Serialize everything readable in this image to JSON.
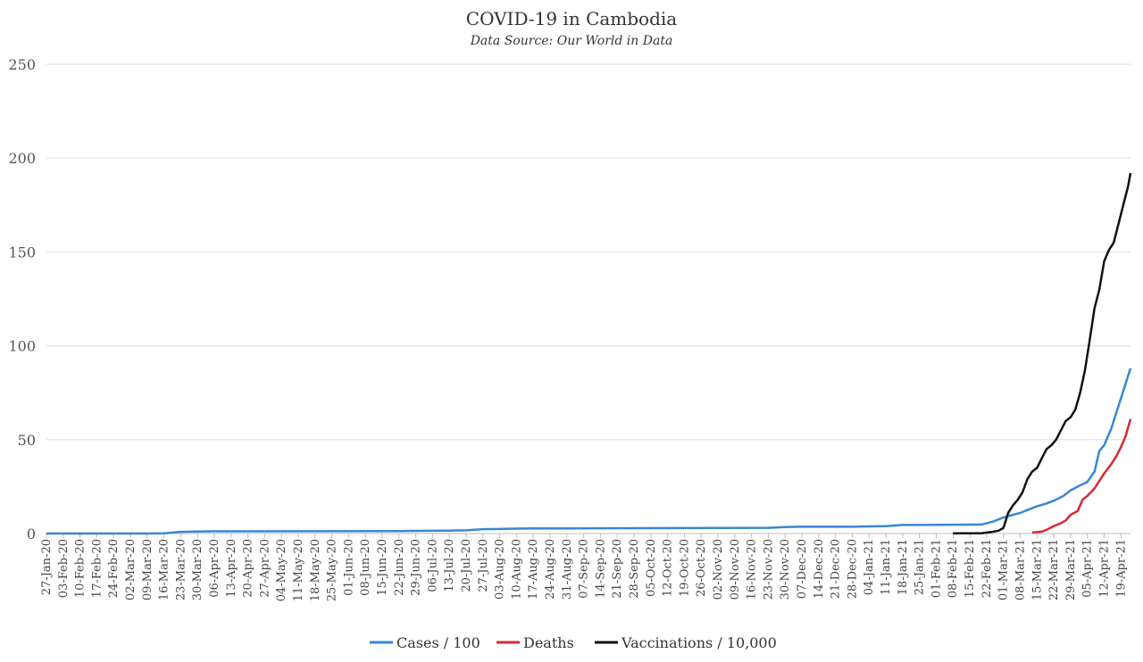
{
  "chart_data": {
    "type": "line",
    "title": "COVID-19 in Cambodia",
    "subtitle": "Data Source: Our World in Data",
    "xlabel": "",
    "ylabel": "",
    "ylim": [
      0,
      250
    ],
    "yticks": [
      0,
      50,
      100,
      150,
      200,
      250
    ],
    "grid": "horizontal",
    "legend_position": "bottom",
    "x_start": "27-Jan-20",
    "x_end": "23-Apr-21",
    "x_tick_labels": [
      "27-Jan-20",
      "03-Feb-20",
      "10-Feb-20",
      "17-Feb-20",
      "24-Feb-20",
      "02-Mar-20",
      "09-Mar-20",
      "16-Mar-20",
      "23-Mar-20",
      "30-Mar-20",
      "06-Apr-20",
      "13-Apr-20",
      "20-Apr-20",
      "27-Apr-20",
      "04-May-20",
      "11-May-20",
      "18-May-20",
      "25-May-20",
      "01-Jun-20",
      "08-Jun-20",
      "15-Jun-20",
      "22-Jun-20",
      "29-Jun-20",
      "06-Jul-20",
      "13-Jul-20",
      "20-Jul-20",
      "27-Jul-20",
      "03-Aug-20",
      "10-Aug-20",
      "17-Aug-20",
      "24-Aug-20",
      "31-Aug-20",
      "07-Sep-20",
      "14-Sep-20",
      "21-Sep-20",
      "28-Sep-20",
      "05-Oct-20",
      "12-Oct-20",
      "19-Oct-20",
      "26-Oct-20",
      "02-Nov-20",
      "09-Nov-20",
      "16-Nov-20",
      "23-Nov-20",
      "30-Nov-20",
      "07-Dec-20",
      "14-Dec-20",
      "21-Dec-20",
      "28-Dec-20",
      "04-Jan-21",
      "11-Jan-21",
      "18-Jan-21",
      "25-Jan-21",
      "01-Feb-21",
      "08-Feb-21",
      "15-Feb-21",
      "22-Feb-21",
      "01-Mar-21",
      "08-Mar-21",
      "15-Mar-21",
      "22-Mar-21",
      "29-Mar-21",
      "05-Apr-21",
      "12-Apr-21",
      "19-Apr-21"
    ],
    "series": [
      {
        "name": "Cases / 100",
        "color": "#3a86d4",
        "points": [
          [
            "27-Jan-20",
            0.01
          ],
          [
            "09-Mar-20",
            0.02
          ],
          [
            "16-Mar-20",
            0.1
          ],
          [
            "23-Mar-20",
            0.9
          ],
          [
            "30-Mar-20",
            1.07
          ],
          [
            "06-Apr-20",
            1.2
          ],
          [
            "22-Jun-20",
            1.3
          ],
          [
            "29-Jun-20",
            1.41
          ],
          [
            "13-Jul-20",
            1.56
          ],
          [
            "20-Jul-20",
            1.71
          ],
          [
            "27-Jul-20",
            2.34
          ],
          [
            "03-Aug-20",
            2.43
          ],
          [
            "10-Aug-20",
            2.6
          ],
          [
            "17-Aug-20",
            2.73
          ],
          [
            "31-Aug-20",
            2.74
          ],
          [
            "23-Nov-20",
            3.06
          ],
          [
            "30-Nov-20",
            3.46
          ],
          [
            "07-Dec-20",
            3.62
          ],
          [
            "14-Dec-20",
            3.62
          ],
          [
            "28-Dec-20",
            3.63
          ],
          [
            "04-Jan-21",
            3.82
          ],
          [
            "11-Jan-21",
            3.92
          ],
          [
            "18-Jan-21",
            4.56
          ],
          [
            "25-Jan-21",
            4.58
          ],
          [
            "01-Feb-21",
            4.68
          ],
          [
            "08-Feb-21",
            4.7
          ],
          [
            "15-Feb-21",
            4.75
          ],
          [
            "20-Feb-21",
            4.8
          ],
          [
            "25-Feb-21",
            6.5
          ],
          [
            "01-Mar-21",
            8.5
          ],
          [
            "05-Mar-21",
            10
          ],
          [
            "08-Mar-21",
            11
          ],
          [
            "11-Mar-21",
            12.5
          ],
          [
            "15-Mar-21",
            14.5
          ],
          [
            "19-Mar-21",
            16
          ],
          [
            "22-Mar-21",
            17.5
          ],
          [
            "26-Mar-21",
            20
          ],
          [
            "29-Mar-21",
            23
          ],
          [
            "01-Apr-21",
            25
          ],
          [
            "05-Apr-21",
            27.5
          ],
          [
            "08-Apr-21",
            33
          ],
          [
            "10-Apr-21",
            44
          ],
          [
            "12-Apr-21",
            47
          ],
          [
            "15-Apr-21",
            56
          ],
          [
            "19-Apr-21",
            72
          ],
          [
            "21-Apr-21",
            80
          ],
          [
            "23-Apr-21",
            88
          ]
        ]
      },
      {
        "name": "Deaths",
        "color": "#d42a35",
        "points": [
          [
            "13-Mar-21",
            0.5
          ],
          [
            "17-Mar-21",
            1
          ],
          [
            "19-Mar-21",
            2
          ],
          [
            "22-Mar-21",
            4
          ],
          [
            "25-Mar-21",
            5.5
          ],
          [
            "27-Mar-21",
            7
          ],
          [
            "29-Mar-21",
            10
          ],
          [
            "01-Apr-21",
            12
          ],
          [
            "03-Apr-21",
            18
          ],
          [
            "05-Apr-21",
            20
          ],
          [
            "08-Apr-21",
            24
          ],
          [
            "10-Apr-21",
            28
          ],
          [
            "12-Apr-21",
            32
          ],
          [
            "15-Apr-21",
            37
          ],
          [
            "17-Apr-21",
            41
          ],
          [
            "19-Apr-21",
            46
          ],
          [
            "21-Apr-21",
            52
          ],
          [
            "23-Apr-21",
            61
          ]
        ]
      },
      {
        "name": "Vaccinations / 10,000",
        "color": "#111111",
        "points": [
          [
            "08-Feb-21",
            0.1
          ],
          [
            "20-Feb-21",
            0.2
          ],
          [
            "24-Feb-21",
            0.8
          ],
          [
            "27-Feb-21",
            1.5
          ],
          [
            "01-Mar-21",
            3
          ],
          [
            "03-Mar-21",
            11
          ],
          [
            "05-Mar-21",
            15
          ],
          [
            "07-Mar-21",
            18
          ],
          [
            "09-Mar-21",
            22
          ],
          [
            "11-Mar-21",
            29
          ],
          [
            "13-Mar-21",
            33
          ],
          [
            "15-Mar-21",
            35
          ],
          [
            "17-Mar-21",
            40
          ],
          [
            "19-Mar-21",
            45
          ],
          [
            "21-Mar-21",
            47
          ],
          [
            "23-Mar-21",
            50
          ],
          [
            "25-Mar-21",
            55
          ],
          [
            "27-Mar-21",
            60
          ],
          [
            "29-Mar-21",
            62
          ],
          [
            "31-Mar-21",
            66
          ],
          [
            "02-Apr-21",
            75
          ],
          [
            "04-Apr-21",
            87
          ],
          [
            "06-Apr-21",
            103
          ],
          [
            "08-Apr-21",
            120
          ],
          [
            "10-Apr-21",
            130
          ],
          [
            "12-Apr-21",
            145
          ],
          [
            "14-Apr-21",
            151
          ],
          [
            "16-Apr-21",
            155
          ],
          [
            "18-Apr-21",
            165
          ],
          [
            "20-Apr-21",
            175
          ],
          [
            "22-Apr-21",
            185
          ],
          [
            "23-Apr-21",
            192
          ]
        ]
      }
    ]
  }
}
